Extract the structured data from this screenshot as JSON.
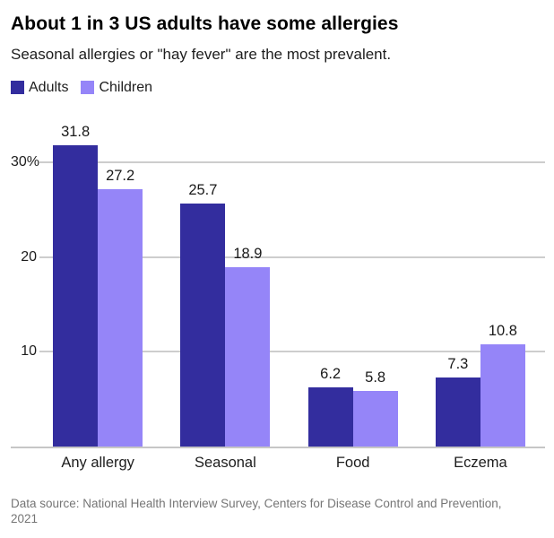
{
  "header": {
    "title": "About 1 in 3 US adults have some allergies",
    "subtitle": "Seasonal allergies or \"hay fever\" are the most prevalent."
  },
  "chart_data": {
    "type": "bar",
    "title": "About 1 in 3 US adults have some allergies",
    "subtitle": "Seasonal allergies or \"hay fever\" are the most prevalent.",
    "categories": [
      "Any allergy",
      "Seasonal",
      "Food",
      "Eczema"
    ],
    "series": [
      {
        "name": "Adults",
        "color": "#332d9e",
        "values": [
          31.8,
          25.7,
          6.2,
          7.3
        ]
      },
      {
        "name": "Children",
        "color": "#9585f8",
        "values": [
          27.2,
          18.9,
          5.8,
          10.8
        ]
      }
    ],
    "yticks": [
      {
        "value": 10,
        "label": "10"
      },
      {
        "value": 20,
        "label": "20"
      },
      {
        "value": 30,
        "label": "30%"
      }
    ],
    "ylim": [
      0,
      35.2
    ],
    "xlabel": "",
    "ylabel": "",
    "grid": true,
    "legend_position": "top-left",
    "value_labels": true
  },
  "footer": {
    "source_lines": [
      "Data source: National Health Interview Survey, Centers for Disease Control and Prevention,",
      "2021"
    ]
  },
  "colors": {
    "adults": "#332d9e",
    "children": "#9585f8",
    "gridline": "#cdcdcd",
    "axis_line": "#c6c6c6",
    "value_label": "#1a1a1a",
    "source_text": "#757575"
  }
}
